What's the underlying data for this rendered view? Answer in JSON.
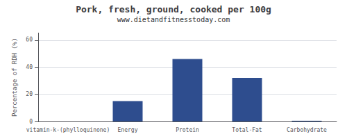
{
  "chart_data": {
    "type": "bar",
    "title": "Pork, fresh, ground, cooked per 100g",
    "subtitle": "www.dietandfitnesstoday.com",
    "categories": [
      "vitamin-k-(phylloquinone)",
      "Energy",
      "Protein",
      "Total-Fat",
      "Carbohydrate"
    ],
    "values": [
      0,
      15,
      46,
      32,
      0.5
    ],
    "color": "#2e4d8e",
    "ylabel": "Percentage of RDH (%)",
    "ylim": [
      0,
      65
    ],
    "yticks": [
      0,
      20,
      40,
      60
    ],
    "grid": true
  }
}
